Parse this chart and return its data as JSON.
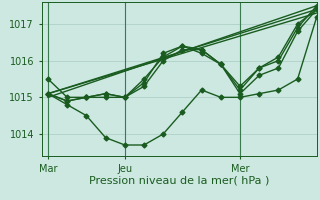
{
  "bg_color": "#cce8e0",
  "grid_color": "#b0d0c8",
  "line_color": "#1a5c20",
  "marker": "D",
  "marker_size": 2.5,
  "linewidth": 1.0,
  "xlabel": "Pression niveau de la mer( hPa )",
  "xlabel_fontsize": 8,
  "tick_label_fontsize": 7,
  "xtick_labels": [
    "Mar",
    "Jeu",
    "Mer"
  ],
  "xtick_positions": [
    0,
    24,
    60
  ],
  "vline_color": "#3a7a50",
  "ylim": [
    1013.4,
    1017.6
  ],
  "ytick_positions": [
    1014,
    1015,
    1016,
    1017
  ],
  "xlim": [
    -2,
    84
  ],
  "series": [
    {
      "x": [
        0,
        6,
        12,
        18,
        24,
        30,
        36,
        42,
        48,
        54,
        60,
        66,
        72,
        78,
        84
      ],
      "y": [
        1015.5,
        1015.0,
        1015.0,
        1015.0,
        1015.0,
        1015.5,
        1016.1,
        1016.4,
        1016.2,
        1015.9,
        1015.2,
        1015.8,
        1016.1,
        1017.0,
        1017.4
      ]
    },
    {
      "x": [
        0,
        6,
        12,
        18,
        24,
        30,
        36,
        42,
        48,
        54,
        60,
        66,
        72,
        78,
        84
      ],
      "y": [
        1015.1,
        1014.8,
        1014.5,
        1013.9,
        1013.7,
        1013.7,
        1014.0,
        1014.6,
        1015.2,
        1015.0,
        1015.0,
        1015.1,
        1015.2,
        1015.5,
        1017.2
      ]
    },
    {
      "x": [
        0,
        6,
        12,
        18,
        24,
        30,
        36,
        42,
        48,
        54,
        60,
        66,
        72,
        78,
        84
      ],
      "y": [
        1015.1,
        1014.9,
        1015.0,
        1015.1,
        1015.0,
        1015.3,
        1016.0,
        1016.3,
        1016.3,
        1015.9,
        1015.1,
        1015.6,
        1015.8,
        1016.8,
        1017.4
      ]
    },
    {
      "x": [
        0,
        6,
        12,
        18,
        24,
        30,
        36,
        42,
        48,
        54,
        60,
        66,
        72,
        78,
        84
      ],
      "y": [
        1015.1,
        1014.9,
        1015.0,
        1015.1,
        1015.0,
        1015.4,
        1016.2,
        1016.4,
        1016.3,
        1015.9,
        1015.3,
        1015.8,
        1016.0,
        1016.9,
        1017.5
      ]
    },
    {
      "x": [
        0,
        84
      ],
      "y": [
        1015.0,
        1017.5
      ]
    },
    {
      "x": [
        0,
        84
      ],
      "y": [
        1015.1,
        1017.3
      ]
    },
    {
      "x": [
        0,
        84
      ],
      "y": [
        1015.1,
        1017.4
      ]
    }
  ]
}
